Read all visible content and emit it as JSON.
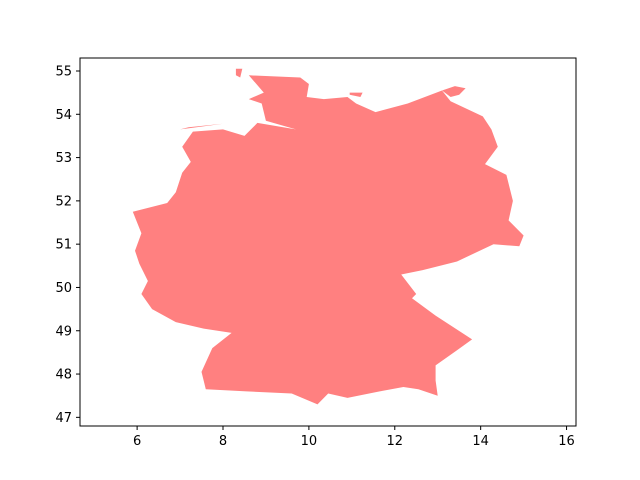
{
  "chart_data": {
    "type": "map",
    "title": "",
    "xlabel": "",
    "ylabel": "",
    "xlim": [
      4.67,
      16.22
    ],
    "ylim": [
      46.8,
      55.3
    ],
    "x_ticks": [
      6,
      8,
      10,
      12,
      14,
      16
    ],
    "y_ticks": [
      47,
      48,
      49,
      50,
      51,
      52,
      53,
      54,
      55
    ],
    "grid": false,
    "fill_color": "#ff8080",
    "series": [
      {
        "name": "",
        "kind": "polygon",
        "points": [
          [
            8.6,
            54.9
          ],
          [
            9.8,
            54.85
          ],
          [
            10.0,
            54.7
          ],
          [
            9.95,
            54.4
          ],
          [
            10.35,
            54.35
          ],
          [
            10.9,
            54.4
          ],
          [
            11.1,
            54.25
          ],
          [
            11.55,
            54.05
          ],
          [
            12.3,
            54.25
          ],
          [
            13.1,
            54.55
          ],
          [
            13.3,
            54.3
          ],
          [
            14.05,
            53.95
          ],
          [
            14.25,
            53.65
          ],
          [
            14.4,
            53.25
          ],
          [
            14.1,
            52.85
          ],
          [
            14.6,
            52.6
          ],
          [
            14.75,
            52.0
          ],
          [
            14.65,
            51.55
          ],
          [
            15.0,
            51.2
          ],
          [
            14.9,
            50.95
          ],
          [
            14.3,
            51.0
          ],
          [
            13.45,
            50.6
          ],
          [
            12.65,
            50.4
          ],
          [
            12.15,
            50.3
          ],
          [
            12.5,
            49.85
          ],
          [
            12.4,
            49.75
          ],
          [
            12.95,
            49.35
          ],
          [
            13.8,
            48.8
          ],
          [
            13.45,
            48.55
          ],
          [
            12.95,
            48.2
          ],
          [
            12.95,
            47.85
          ],
          [
            13.0,
            47.5
          ],
          [
            12.55,
            47.65
          ],
          [
            12.2,
            47.7
          ],
          [
            11.65,
            47.6
          ],
          [
            10.9,
            47.45
          ],
          [
            10.45,
            47.55
          ],
          [
            10.2,
            47.3
          ],
          [
            9.6,
            47.55
          ],
          [
            8.55,
            47.6
          ],
          [
            7.6,
            47.65
          ],
          [
            7.5,
            48.05
          ],
          [
            7.75,
            48.6
          ],
          [
            8.2,
            48.95
          ],
          [
            7.55,
            49.05
          ],
          [
            6.9,
            49.2
          ],
          [
            6.35,
            49.5
          ],
          [
            6.1,
            49.85
          ],
          [
            6.25,
            50.15
          ],
          [
            6.05,
            50.55
          ],
          [
            5.95,
            50.85
          ],
          [
            6.1,
            51.25
          ],
          [
            5.9,
            51.75
          ],
          [
            6.7,
            51.95
          ],
          [
            6.9,
            52.2
          ],
          [
            7.05,
            52.65
          ],
          [
            7.25,
            52.9
          ],
          [
            7.05,
            53.25
          ],
          [
            7.3,
            53.6
          ],
          [
            8.0,
            53.65
          ],
          [
            8.5,
            53.5
          ],
          [
            8.8,
            53.8
          ],
          [
            9.7,
            53.65
          ],
          [
            9.0,
            53.85
          ],
          [
            8.9,
            54.25
          ],
          [
            8.6,
            54.35
          ],
          [
            8.95,
            54.5
          ],
          [
            8.6,
            54.9
          ]
        ]
      },
      {
        "name": "",
        "kind": "polygon",
        "points": [
          [
            13.1,
            54.55
          ],
          [
            13.4,
            54.65
          ],
          [
            13.65,
            54.6
          ],
          [
            13.5,
            54.45
          ],
          [
            13.3,
            54.4
          ],
          [
            13.1,
            54.55
          ]
        ]
      },
      {
        "name": "",
        "kind": "polygon",
        "points": [
          [
            10.95,
            54.5
          ],
          [
            11.25,
            54.5
          ],
          [
            11.2,
            54.4
          ],
          [
            10.95,
            54.45
          ],
          [
            10.95,
            54.5
          ]
        ]
      },
      {
        "name": "",
        "kind": "polygon",
        "points": [
          [
            8.3,
            55.05
          ],
          [
            8.45,
            55.05
          ],
          [
            8.4,
            54.85
          ],
          [
            8.3,
            54.9
          ],
          [
            8.3,
            55.05
          ]
        ]
      },
      {
        "name": "",
        "kind": "polygon",
        "points": [
          [
            7.0,
            53.65
          ],
          [
            8.0,
            53.78
          ],
          [
            7.2,
            53.7
          ],
          [
            7.0,
            53.65
          ]
        ]
      }
    ]
  }
}
